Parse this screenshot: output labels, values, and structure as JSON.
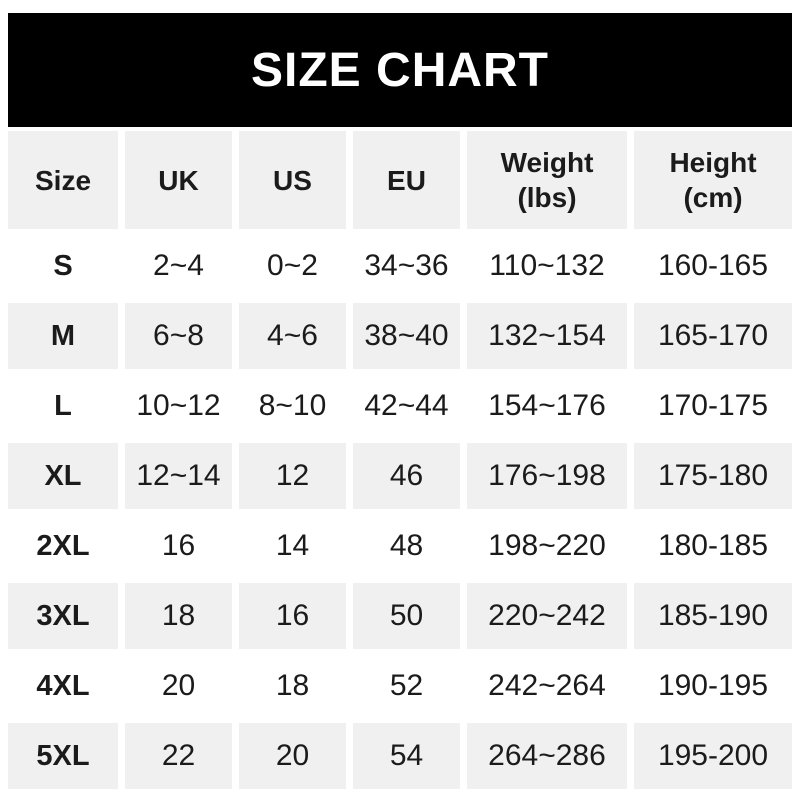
{
  "colors": {
    "page_bg": "#ffffff",
    "banner_bg": "#000000",
    "banner_text": "#ffffff",
    "row_stripe": "#f0f0f0",
    "table_text": "#1b1b1b"
  },
  "banner": {
    "title": "SIZE CHART"
  },
  "chart_data": {
    "type": "table",
    "title": "SIZE CHART",
    "columns": [
      "Size",
      "UK",
      "US",
      "EU",
      "Weight (lbs)",
      "Height (cm)"
    ],
    "rows": [
      [
        "S",
        "2~4",
        "0~2",
        "34~36",
        "110~132",
        "160-165"
      ],
      [
        "M",
        "6~8",
        "4~6",
        "38~40",
        "132~154",
        "165-170"
      ],
      [
        "L",
        "10~12",
        "8~10",
        "42~44",
        "154~176",
        "170-175"
      ],
      [
        "XL",
        "12~14",
        "12",
        "46",
        "176~198",
        "175-180"
      ],
      [
        "2XL",
        "16",
        "14",
        "48",
        "198~220",
        "180-185"
      ],
      [
        "3XL",
        "18",
        "16",
        "50",
        "220~242",
        "185-190"
      ],
      [
        "4XL",
        "20",
        "18",
        "52",
        "242~264",
        "190-195"
      ],
      [
        "5XL",
        "22",
        "20",
        "54",
        "264~286",
        "195-200"
      ]
    ],
    "layout": {
      "stripe_pattern": "header and even data rows shaded, odd data rows white",
      "cell_gaps": "white gutters between cells"
    }
  }
}
